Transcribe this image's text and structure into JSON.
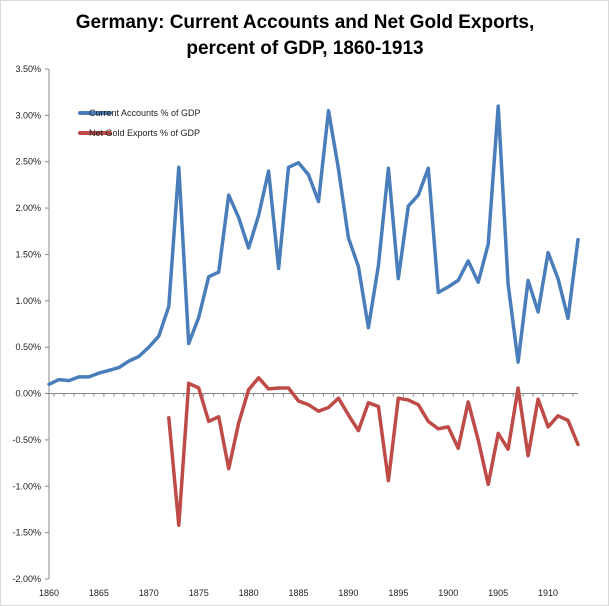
{
  "chart_data": {
    "type": "line",
    "title": "Germany: Current Accounts and Net Gold Exports, percent of GDP, 1860-1913",
    "xlabel": "",
    "ylabel": "",
    "xlim": [
      1860,
      1913
    ],
    "ylim": [
      -2.0,
      3.5
    ],
    "xticks": [
      1860,
      1865,
      1870,
      1875,
      1880,
      1885,
      1890,
      1895,
      1900,
      1905,
      1910
    ],
    "yticks": [
      {
        "value": 3.5,
        "label": "3.50%"
      },
      {
        "value": 3.0,
        "label": "3.00%"
      },
      {
        "value": 2.5,
        "label": "2.50%"
      },
      {
        "value": 2.0,
        "label": "2.00%"
      },
      {
        "value": 1.5,
        "label": "1.50%"
      },
      {
        "value": 1.0,
        "label": "1.00%"
      },
      {
        "value": 0.5,
        "label": "0.50%"
      },
      {
        "value": 0.0,
        "label": "0.00%"
      },
      {
        "value": -0.5,
        "label": "-0.50%"
      },
      {
        "value": -1.0,
        "label": "-1.00%"
      },
      {
        "value": -1.5,
        "label": "-1.50%"
      },
      {
        "value": -2.0,
        "label": "-2.00%"
      }
    ],
    "grid": false,
    "legend_position": "top-left",
    "series": [
      {
        "name": "Current Accounts % of GDP",
        "color": "#4a7ebb",
        "x": [
          1860,
          1861,
          1862,
          1863,
          1864,
          1865,
          1866,
          1867,
          1868,
          1869,
          1870,
          1871,
          1872,
          1873,
          1874,
          1875,
          1876,
          1877,
          1878,
          1879,
          1880,
          1881,
          1882,
          1883,
          1884,
          1885,
          1886,
          1887,
          1888,
          1889,
          1890,
          1891,
          1892,
          1893,
          1894,
          1895,
          1896,
          1897,
          1898,
          1899,
          1900,
          1901,
          1902,
          1903,
          1904,
          1905,
          1906,
          1907,
          1908,
          1909,
          1910,
          1911,
          1912,
          1913
        ],
        "values": [
          0.1,
          0.15,
          0.14,
          0.18,
          0.18,
          0.22,
          0.25,
          0.28,
          0.35,
          0.4,
          0.5,
          0.62,
          0.94,
          2.44,
          0.54,
          0.82,
          1.26,
          1.31,
          2.14,
          1.9,
          1.57,
          1.92,
          2.4,
          1.35,
          2.44,
          2.49,
          2.36,
          2.07,
          3.05,
          2.42,
          1.68,
          1.37,
          0.71,
          1.38,
          2.43,
          1.24,
          2.02,
          2.14,
          2.43,
          1.09,
          1.15,
          1.22,
          1.43,
          1.2,
          1.61,
          3.1,
          1.18,
          0.34,
          1.22,
          0.88,
          1.52,
          1.24,
          0.81,
          1.66
        ]
      },
      {
        "name": "Net Gold Exports % of GDP",
        "color": "#be4b48",
        "x": [
          1872,
          1873,
          1874,
          1875,
          1876,
          1877,
          1878,
          1879,
          1880,
          1881,
          1882,
          1883,
          1884,
          1885,
          1886,
          1887,
          1888,
          1889,
          1890,
          1891,
          1892,
          1893,
          1894,
          1895,
          1896,
          1897,
          1898,
          1899,
          1900,
          1901,
          1902,
          1903,
          1904,
          1905,
          1906,
          1907,
          1908,
          1909,
          1910,
          1911,
          1912,
          1913
        ],
        "values": [
          -0.26,
          -1.42,
          0.11,
          0.06,
          -0.3,
          -0.25,
          -0.81,
          -0.32,
          0.04,
          0.17,
          0.05,
          0.06,
          0.06,
          -0.08,
          -0.12,
          -0.19,
          -0.15,
          -0.05,
          -0.23,
          -0.4,
          -0.1,
          -0.14,
          -0.94,
          -0.05,
          -0.07,
          -0.12,
          -0.3,
          -0.38,
          -0.36,
          -0.59,
          -0.09,
          -0.5,
          -0.98,
          -0.43,
          -0.6,
          0.06,
          -0.67,
          -0.06,
          -0.36,
          -0.24,
          -0.29,
          -0.55
        ]
      }
    ]
  }
}
